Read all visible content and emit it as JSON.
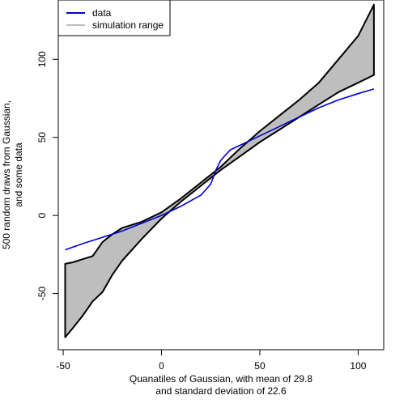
{
  "chart_data": {
    "type": "area",
    "xlabel": [
      "Quanatiles of Gaussian, with mean of 29.8",
      "and standard deviation of 22.6"
    ],
    "ylabel": [
      "500 random draws from Gaussian,",
      "and some data"
    ],
    "xlim": [
      -52.5,
      113
    ],
    "ylim": [
      -86,
      138
    ],
    "x_ticks": [
      -50,
      0,
      50,
      100
    ],
    "y_ticks": [
      -50,
      0,
      50,
      100
    ],
    "legend": {
      "position": "top-left",
      "entries": [
        {
          "label": "data",
          "color": "#0000cc",
          "kind": "line"
        },
        {
          "label": "simulation range",
          "color": "#bebebe",
          "kind": "band"
        }
      ]
    },
    "series": [
      {
        "name": "data",
        "color": "#0000cc",
        "x": [
          -49,
          -40,
          -30,
          -20,
          -10,
          0,
          10,
          20,
          25,
          28,
          30,
          32,
          35,
          40,
          50,
          60,
          70,
          80,
          90,
          100,
          108
        ],
        "y": [
          -22,
          -18,
          -14,
          -10,
          -5,
          0,
          6,
          13,
          20,
          30,
          35,
          38,
          42,
          45,
          51,
          57,
          63,
          69,
          74,
          78,
          81
        ]
      },
      {
        "name": "simulation range",
        "color": "#bebebe",
        "x": [
          -49,
          -45,
          -40,
          -35,
          -30,
          -25,
          -20,
          -10,
          0,
          10,
          20,
          30,
          40,
          50,
          60,
          70,
          80,
          90,
          100,
          108
        ],
        "upper": [
          -31,
          -30,
          -28,
          -26,
          -17,
          -12,
          -8,
          -4,
          2,
          11,
          21,
          31,
          43,
          54,
          64,
          74,
          85,
          100,
          115,
          135
        ],
        "lower": [
          -78,
          -72,
          -64,
          -55,
          -49,
          -38,
          -29,
          -15,
          -2,
          9,
          19,
          29,
          38,
          47,
          55,
          63,
          71,
          79,
          85,
          90
        ]
      }
    ]
  }
}
